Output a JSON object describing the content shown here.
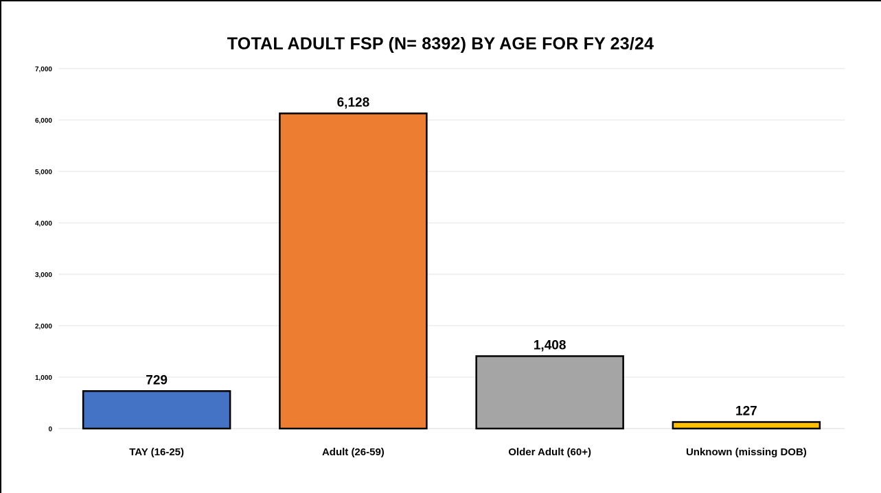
{
  "chart_data": {
    "type": "bar",
    "title": "TOTAL ADULT FSP (N= 8392) BY AGE FOR FY 23/24",
    "xlabel": "",
    "ylabel": "",
    "categories": [
      "TAY (16-25)",
      "Adult (26-59)",
      "Older Adult (60+)",
      "Unknown (missing DOB)"
    ],
    "values": [
      729,
      6128,
      1408,
      127
    ],
    "value_labels": [
      "729",
      "6,128",
      "1,408",
      "127"
    ],
    "ylim": [
      0,
      7000
    ],
    "yticks": [
      0,
      1000,
      2000,
      3000,
      4000,
      5000,
      6000,
      7000
    ],
    "ytick_labels": [
      "0",
      "1,000",
      "2,000",
      "3,000",
      "4,000",
      "5,000",
      "6,000",
      "7,000"
    ],
    "colors": [
      "#4472C4",
      "#ED7D31",
      "#A5A5A5",
      "#FFC000"
    ],
    "grid": true,
    "legend": "none"
  }
}
